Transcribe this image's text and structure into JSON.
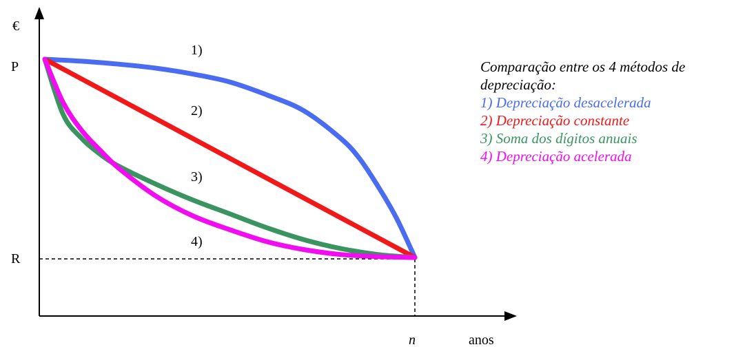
{
  "chart_data": {
    "type": "line",
    "y_unit_label": "€",
    "x_unit_label": "anos",
    "y_ticks": [
      {
        "label": "P",
        "value": 1.0
      },
      {
        "label": "R",
        "value": 0.0
      }
    ],
    "x_ticks": [
      {
        "label": "n",
        "value": 1.0
      }
    ],
    "xlim": [
      -0.02,
      1.28
    ],
    "ylim": [
      -0.3,
      1.3
    ],
    "legend": {
      "title": "Comparação entre os 4 métodos de depreciação:",
      "placement": "right"
    },
    "series": [
      {
        "name": "1) Depreciação desacelerada",
        "label": "1)",
        "color": "#4a6cf0",
        "x": [
          0.0,
          0.1,
          0.2,
          0.3,
          0.4,
          0.5,
          0.6,
          0.7,
          0.8,
          0.85,
          0.9,
          0.95,
          1.0
        ],
        "y": [
          1.0,
          0.99,
          0.975,
          0.955,
          0.925,
          0.885,
          0.82,
          0.74,
          0.6,
          0.5,
          0.36,
          0.2,
          0.0
        ]
      },
      {
        "name": "2) Depreciação constante",
        "label": "2)",
        "color": "#f01818",
        "x": [
          0.0,
          1.0
        ],
        "y": [
          1.0,
          0.0
        ]
      },
      {
        "name": "3) Soma dos dígitos anuais",
        "label": "3)",
        "color": "#3a9460",
        "x": [
          0.0,
          0.05,
          0.1,
          0.15,
          0.2,
          0.3,
          0.4,
          0.5,
          0.6,
          0.7,
          0.8,
          0.9,
          1.0
        ],
        "y": [
          1.0,
          0.72,
          0.6,
          0.52,
          0.46,
          0.37,
          0.29,
          0.22,
          0.15,
          0.09,
          0.045,
          0.015,
          0.0
        ]
      },
      {
        "name": "4) Depreciação acelerada",
        "label": "4)",
        "color": "#f00ef0",
        "x": [
          0.0,
          0.05,
          0.1,
          0.15,
          0.2,
          0.3,
          0.4,
          0.5,
          0.6,
          0.7,
          0.8,
          0.9,
          1.0
        ],
        "y": [
          1.0,
          0.78,
          0.64,
          0.54,
          0.45,
          0.31,
          0.21,
          0.14,
          0.08,
          0.04,
          0.015,
          0.004,
          0.0
        ]
      }
    ]
  }
}
